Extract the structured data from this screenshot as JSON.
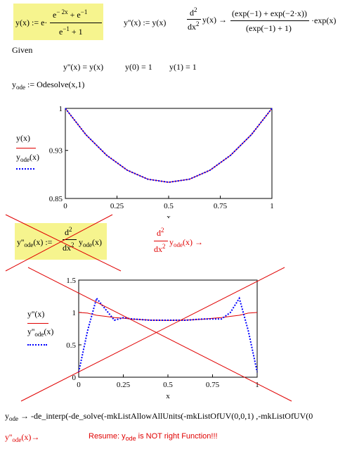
{
  "top_definitions": {
    "y_def": "y(x) := e·[e⁻²ˣ + e⁻¹] / [e⁻¹ + 1]",
    "ypp_def": "y''(x) := y(x)",
    "symbolic_d2": "d²/dx² y(x) → (exp(−1) + exp(−2·x))/(exp(−1) + 1)·exp(x)"
  },
  "given_block": {
    "label": "Given",
    "eq1": "y''(x) = y(x)",
    "eq2": "y(0) = 1",
    "eq3": "y(1) = 1",
    "odesolve": "y_ode := Odesolve(x,1)"
  },
  "plot1": {
    "legend_line1": "y(x)",
    "legend_line2": "y_ode(x)",
    "yticks": [
      "1",
      "0.93",
      "0.85"
    ],
    "xticks": [
      "0",
      "0.25",
      "0.5",
      "0.75",
      "1"
    ],
    "xlabel": "x"
  },
  "crossed_def": {
    "text": "y''_ode(x) := d²/dx² y_ode(x)"
  },
  "red_symbolic": "d²/dx² y_ode(x) →",
  "plot2": {
    "legend_line1": "y''(x)",
    "legend_line2": "y''_ode(x)",
    "yticks": [
      "1.5",
      "1",
      "0.5",
      "0"
    ],
    "xticks": [
      "0",
      "0.25",
      "0.5",
      "0.75",
      "1"
    ],
    "xlabel": "x"
  },
  "bottom_result": "y_ode → -de_interp(-de_solve(-mkListAllowAllUnits(-mkListOfUV(0,0,1) ,-mkListOfUV(0",
  "red_result": "y''_ode(x) →",
  "resume": "Resume: y_ode is NOT right Function!!!",
  "chart_data": [
    {
      "type": "line",
      "xlabel": "x",
      "ylabel": "",
      "xlim": [
        0,
        1
      ],
      "ylim": [
        0.85,
        1
      ],
      "x": [
        0,
        0.1,
        0.2,
        0.3,
        0.4,
        0.5,
        0.6,
        0.7,
        0.8,
        0.9,
        1
      ],
      "series": [
        {
          "name": "y(x)",
          "values": [
            1,
            0.956,
            0.922,
            0.897,
            0.882,
            0.877,
            0.882,
            0.897,
            0.922,
            0.956,
            1
          ]
        },
        {
          "name": "y_ode(x)",
          "values": [
            1,
            0.956,
            0.922,
            0.897,
            0.882,
            0.877,
            0.882,
            0.897,
            0.922,
            0.956,
            1
          ]
        }
      ]
    },
    {
      "type": "line",
      "xlabel": "x",
      "ylabel": "",
      "xlim": [
        0,
        1
      ],
      "ylim": [
        0,
        1.5
      ],
      "x": [
        0,
        0.05,
        0.1,
        0.15,
        0.2,
        0.25,
        0.3,
        0.4,
        0.5,
        0.6,
        0.7,
        0.75,
        0.8,
        0.85,
        0.9,
        0.95,
        1
      ],
      "series": [
        {
          "name": "y''(x)",
          "values": [
            1,
            0.99,
            0.956,
            0.94,
            0.922,
            0.912,
            0.897,
            0.882,
            0.877,
            0.882,
            0.897,
            0.91,
            0.922,
            0.94,
            0.956,
            0.99,
            1
          ]
        },
        {
          "name": "y''_ode(x)",
          "values": [
            0.08,
            0.72,
            1.22,
            1.05,
            0.88,
            0.92,
            0.9,
            0.88,
            0.88,
            0.88,
            0.9,
            0.9,
            0.9,
            1.0,
            1.22,
            0.72,
            0.08
          ]
        }
      ]
    }
  ]
}
